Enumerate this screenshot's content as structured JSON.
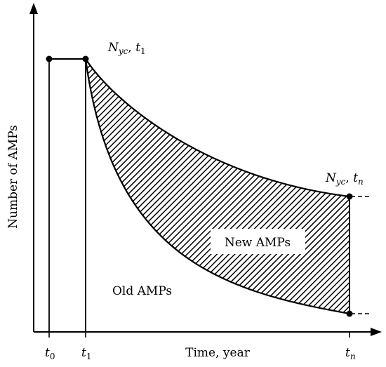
{
  "axes": {
    "ylabel": "Number of AMPs",
    "xlabel": "Time, year"
  },
  "ticks": [
    {
      "main": "t",
      "sub": "0"
    },
    {
      "main": "t",
      "sub": "1"
    },
    {
      "main": "t",
      "sub": "n"
    }
  ],
  "annotations": {
    "top_point": {
      "var": "N",
      "sub": "yc",
      "sep": ", ",
      "t": "t",
      "tsub": "1"
    },
    "end_point": {
      "var": "N",
      "sub": "yc",
      "sep": ", ",
      "t": "t",
      "tsub": "n"
    }
  },
  "regions": {
    "new": "New AMPs",
    "old": "Old AMPs"
  },
  "colors": {
    "ink": "#000000",
    "background": "#ffffff"
  }
}
